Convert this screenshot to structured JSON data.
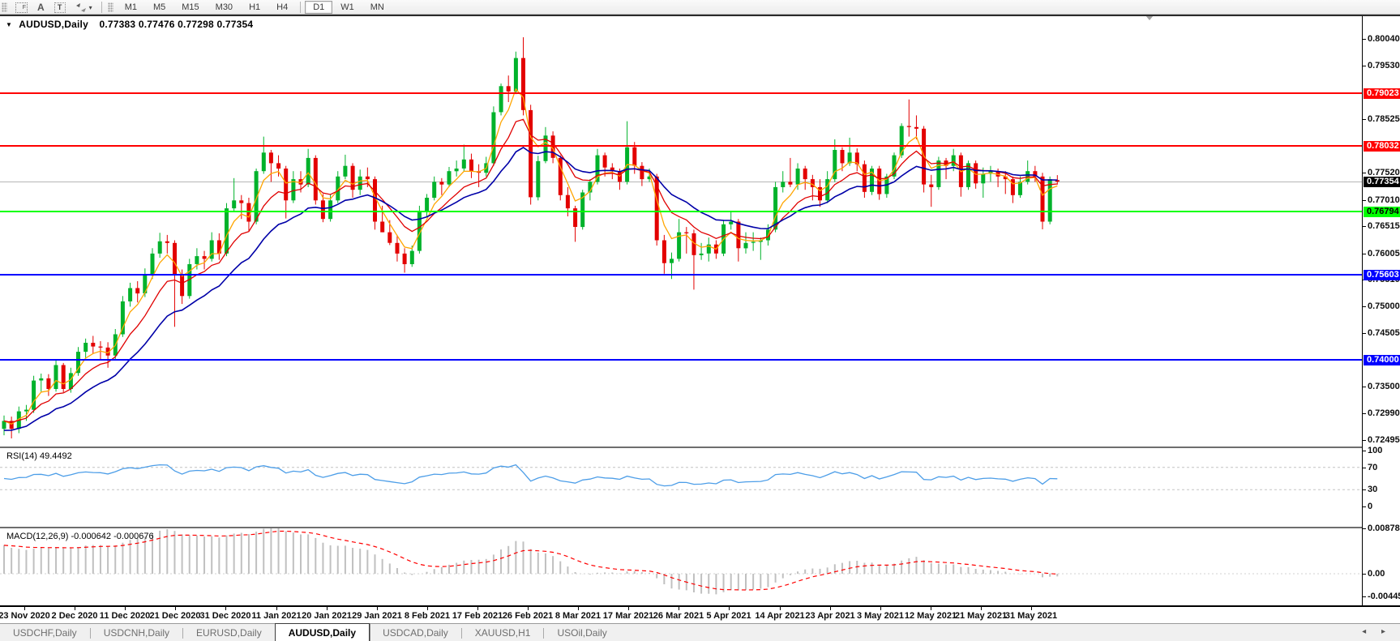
{
  "toolbar": {
    "text_tool_label": "A",
    "timeframes": [
      "M1",
      "M5",
      "M15",
      "M30",
      "H1",
      "H4",
      "D1",
      "W1",
      "MN"
    ],
    "active_timeframe": "D1"
  },
  "header": {
    "symbol_label": "AUDUSD,Daily",
    "ohlc_values": "0.77383 0.77476 0.77298 0.77354"
  },
  "rsi_panel": {
    "label": "RSI(14)",
    "value": "49.4492"
  },
  "macd_panel": {
    "label": "MACD(12,26,9)",
    "values": "-0.000642 -0.000676"
  },
  "tabs": {
    "items": [
      {
        "label": "USDCHF,Daily",
        "active": false
      },
      {
        "label": "USDCNH,Daily",
        "active": false
      },
      {
        "label": "EURUSD,Daily",
        "active": false
      },
      {
        "label": "AUDUSD,Daily",
        "active": true
      },
      {
        "label": "USDCAD,Daily",
        "active": false
      },
      {
        "label": "XAUUSD,H1",
        "active": false
      },
      {
        "label": "USOil,Daily",
        "active": false
      }
    ],
    "scroll_arrows": "◂ ▸"
  },
  "chart_data": {
    "type": "candlestick",
    "symbol": "AUDUSD",
    "period": "Daily",
    "current_bid": 0.77354,
    "colors": {
      "bull": "#00b22b",
      "bear": "#e30000",
      "ma_fast": "#ffa500",
      "ma_mid": "#e00000",
      "ma_slow": "#0000a8",
      "rsi_line": "#4d9ee8",
      "macd_hist": "#c0c0c0",
      "macd_signal": "#ff0000",
      "level_red": "#ff0000",
      "level_green": "#00ff00",
      "level_blue": "#0000ff",
      "bid_line": "#b6b6b6"
    },
    "y_axis_ticks": [
      "0.80040",
      "0.79530",
      "0.78525",
      "0.77520",
      "0.77010",
      "0.76515",
      "0.76005",
      "0.75510",
      "0.75000",
      "0.74505",
      "0.73500",
      "0.72990",
      "0.72495"
    ],
    "price_tags": [
      {
        "price": 0.79023,
        "label": "0.79023",
        "bg": "#ff0000",
        "fg": "#ffffff"
      },
      {
        "price": 0.78032,
        "label": "0.78032",
        "bg": "#ff0000",
        "fg": "#ffffff"
      },
      {
        "price": 0.77354,
        "label": "0.77354",
        "bg": "#000000",
        "fg": "#ffffff"
      },
      {
        "price": 0.76794,
        "label": "0.76794",
        "bg": "#00ff00",
        "fg": "#000000"
      },
      {
        "price": 0.75603,
        "label": "0.75603",
        "bg": "#0000ff",
        "fg": "#ffffff"
      },
      {
        "price": 0.74,
        "label": "0.74000",
        "bg": "#0000ff",
        "fg": "#ffffff"
      }
    ],
    "h_levels": [
      {
        "price": 0.79023,
        "color": "#ff0000",
        "width": 2
      },
      {
        "price": 0.78032,
        "color": "#ff0000",
        "width": 2
      },
      {
        "price": 0.76794,
        "color": "#00ff00",
        "width": 2
      },
      {
        "price": 0.75603,
        "color": "#0000ff",
        "width": 2
      },
      {
        "price": 0.74,
        "color": "#0000ff",
        "width": 2
      }
    ],
    "rsi_axis_ticks": [
      "100",
      "70",
      "30",
      "0"
    ],
    "rsi_dashed_levels": [
      70,
      30
    ],
    "macd_axis_ticks": [
      "0.008782",
      "0.00",
      "-0.004451"
    ],
    "x_axis_labels": [
      "23 Nov 2020",
      "2 Dec 2020",
      "11 Dec 2020",
      "21 Dec 2020",
      "31 Dec 2020",
      "11 Jan 2021",
      "20 Jan 2021",
      "29 Jan 2021",
      "8 Feb 2021",
      "17 Feb 2021",
      "26 Feb 2021",
      "8 Mar 2021",
      "17 Mar 2021",
      "26 Mar 2021",
      "5 Apr 2021",
      "14 Apr 2021",
      "23 Apr 2021",
      "3 May 2021",
      "12 May 2021",
      "21 May 2021",
      "31 May 2021"
    ],
    "candles": [
      [
        0.727,
        0.7295,
        0.7258,
        0.7285
      ],
      [
        0.7285,
        0.7293,
        0.7252,
        0.727
      ],
      [
        0.727,
        0.7312,
        0.7262,
        0.7303
      ],
      [
        0.7303,
        0.7315,
        0.7285,
        0.7306
      ],
      [
        0.7306,
        0.737,
        0.73,
        0.7361
      ],
      [
        0.7361,
        0.7374,
        0.734,
        0.7365
      ],
      [
        0.7365,
        0.7373,
        0.7332,
        0.7345
      ],
      [
        0.7345,
        0.7399,
        0.734,
        0.739
      ],
      [
        0.739,
        0.7394,
        0.7339,
        0.7345
      ],
      [
        0.7345,
        0.7385,
        0.7338,
        0.7375
      ],
      [
        0.7375,
        0.7424,
        0.737,
        0.7415
      ],
      [
        0.7415,
        0.744,
        0.7402,
        0.7432
      ],
      [
        0.7432,
        0.7445,
        0.7412,
        0.7425
      ],
      [
        0.7425,
        0.7435,
        0.7401,
        0.7423
      ],
      [
        0.7423,
        0.7433,
        0.7385,
        0.7408
      ],
      [
        0.7408,
        0.7458,
        0.74,
        0.7448
      ],
      [
        0.7448,
        0.752,
        0.7443,
        0.751
      ],
      [
        0.751,
        0.7545,
        0.75,
        0.7535
      ],
      [
        0.7535,
        0.7548,
        0.7508,
        0.7525
      ],
      [
        0.7525,
        0.7572,
        0.7518,
        0.756
      ],
      [
        0.756,
        0.761,
        0.7552,
        0.76
      ],
      [
        0.76,
        0.7639,
        0.7592,
        0.7623
      ],
      [
        0.7623,
        0.7635,
        0.76,
        0.762
      ],
      [
        0.762,
        0.7625,
        0.7462,
        0.756
      ],
      [
        0.756,
        0.757,
        0.7505,
        0.752
      ],
      [
        0.752,
        0.759,
        0.7515,
        0.758
      ],
      [
        0.758,
        0.761,
        0.757,
        0.7595
      ],
      [
        0.7595,
        0.7605,
        0.757,
        0.759
      ],
      [
        0.759,
        0.764,
        0.7585,
        0.7625
      ],
      [
        0.7625,
        0.7638,
        0.7588,
        0.76
      ],
      [
        0.76,
        0.7695,
        0.7595,
        0.7685
      ],
      [
        0.7685,
        0.7742,
        0.768,
        0.77
      ],
      [
        0.77,
        0.771,
        0.7665,
        0.7695
      ],
      [
        0.7695,
        0.7705,
        0.7642,
        0.766
      ],
      [
        0.766,
        0.776,
        0.7655,
        0.7755
      ],
      [
        0.7755,
        0.782,
        0.775,
        0.779
      ],
      [
        0.779,
        0.7795,
        0.7735,
        0.777
      ],
      [
        0.777,
        0.7785,
        0.7745,
        0.776
      ],
      [
        0.776,
        0.7765,
        0.7666,
        0.77
      ],
      [
        0.77,
        0.7755,
        0.7695,
        0.774
      ],
      [
        0.774,
        0.7755,
        0.7715,
        0.773
      ],
      [
        0.773,
        0.7797,
        0.7725,
        0.778
      ],
      [
        0.778,
        0.7785,
        0.7692,
        0.77
      ],
      [
        0.77,
        0.7712,
        0.7659,
        0.7665
      ],
      [
        0.7665,
        0.7712,
        0.766,
        0.77
      ],
      [
        0.77,
        0.7755,
        0.7695,
        0.7745
      ],
      [
        0.7745,
        0.7786,
        0.774,
        0.7765
      ],
      [
        0.7765,
        0.777,
        0.7705,
        0.772
      ],
      [
        0.772,
        0.7758,
        0.771,
        0.7745
      ],
      [
        0.7745,
        0.7762,
        0.7725,
        0.774
      ],
      [
        0.774,
        0.7745,
        0.7645,
        0.766
      ],
      [
        0.766,
        0.769,
        0.764,
        0.764
      ],
      [
        0.764,
        0.7663,
        0.7616,
        0.762
      ],
      [
        0.762,
        0.7635,
        0.7585,
        0.76
      ],
      [
        0.76,
        0.761,
        0.7564,
        0.758
      ],
      [
        0.758,
        0.7615,
        0.7575,
        0.7605
      ],
      [
        0.7605,
        0.769,
        0.76,
        0.768
      ],
      [
        0.768,
        0.7712,
        0.767,
        0.7705
      ],
      [
        0.7705,
        0.7745,
        0.77,
        0.7735
      ],
      [
        0.7735,
        0.7742,
        0.771,
        0.773
      ],
      [
        0.773,
        0.7763,
        0.7725,
        0.7755
      ],
      [
        0.7755,
        0.7775,
        0.7745,
        0.776
      ],
      [
        0.776,
        0.7805,
        0.7755,
        0.7777
      ],
      [
        0.7777,
        0.7788,
        0.7742,
        0.7755
      ],
      [
        0.7755,
        0.7768,
        0.7725,
        0.7752
      ],
      [
        0.7752,
        0.7782,
        0.7745,
        0.777
      ],
      [
        0.777,
        0.7877,
        0.7765,
        0.7866
      ],
      [
        0.7866,
        0.792,
        0.786,
        0.7915
      ],
      [
        0.7915,
        0.7935,
        0.7885,
        0.7905
      ],
      [
        0.7905,
        0.798,
        0.79,
        0.7968
      ],
      [
        0.7968,
        0.8007,
        0.786,
        0.787
      ],
      [
        0.787,
        0.788,
        0.7692,
        0.7706
      ],
      [
        0.7706,
        0.7784,
        0.77,
        0.7774
      ],
      [
        0.7774,
        0.7838,
        0.777,
        0.7822
      ],
      [
        0.7822,
        0.783,
        0.777,
        0.778
      ],
      [
        0.778,
        0.7785,
        0.77,
        0.771
      ],
      [
        0.771,
        0.7725,
        0.767,
        0.7685
      ],
      [
        0.7685,
        0.769,
        0.7622,
        0.765
      ],
      [
        0.765,
        0.772,
        0.7645,
        0.7715
      ],
      [
        0.7715,
        0.774,
        0.77,
        0.7735
      ],
      [
        0.7735,
        0.7797,
        0.773,
        0.7785
      ],
      [
        0.7785,
        0.779,
        0.7745,
        0.7762
      ],
      [
        0.7762,
        0.777,
        0.774,
        0.7755
      ],
      [
        0.7755,
        0.776,
        0.772,
        0.7735
      ],
      [
        0.7735,
        0.7849,
        0.773,
        0.78
      ],
      [
        0.78,
        0.781,
        0.775,
        0.7765
      ],
      [
        0.7765,
        0.7772,
        0.7727,
        0.774
      ],
      [
        0.774,
        0.776,
        0.7735,
        0.7745
      ],
      [
        0.7745,
        0.775,
        0.7615,
        0.7625
      ],
      [
        0.7625,
        0.7635,
        0.7562,
        0.7582
      ],
      [
        0.7582,
        0.7602,
        0.7552,
        0.759
      ],
      [
        0.759,
        0.7665,
        0.7585,
        0.764
      ],
      [
        0.764,
        0.765,
        0.76,
        0.7638
      ],
      [
        0.7638,
        0.7645,
        0.7532,
        0.7597
      ],
      [
        0.7597,
        0.762,
        0.7588,
        0.76
      ],
      [
        0.76,
        0.763,
        0.7585,
        0.7617
      ],
      [
        0.7617,
        0.7625,
        0.759,
        0.76
      ],
      [
        0.76,
        0.7663,
        0.7595,
        0.7655
      ],
      [
        0.7655,
        0.768,
        0.7645,
        0.766
      ],
      [
        0.766,
        0.7665,
        0.7585,
        0.761
      ],
      [
        0.761,
        0.764,
        0.76,
        0.762
      ],
      [
        0.762,
        0.764,
        0.7605,
        0.7622
      ],
      [
        0.7622,
        0.763,
        0.7588,
        0.7625
      ],
      [
        0.7625,
        0.7655,
        0.7615,
        0.7645
      ],
      [
        0.7645,
        0.7735,
        0.764,
        0.7725
      ],
      [
        0.7725,
        0.7755,
        0.7715,
        0.7735
      ],
      [
        0.7735,
        0.778,
        0.7725,
        0.773
      ],
      [
        0.773,
        0.777,
        0.772,
        0.776
      ],
      [
        0.776,
        0.7765,
        0.772,
        0.774
      ],
      [
        0.774,
        0.7748,
        0.77,
        0.7725
      ],
      [
        0.7725,
        0.774,
        0.7688,
        0.77
      ],
      [
        0.77,
        0.7755,
        0.7695,
        0.774
      ],
      [
        0.774,
        0.7815,
        0.7735,
        0.7795
      ],
      [
        0.7795,
        0.78,
        0.7755,
        0.777
      ],
      [
        0.777,
        0.7818,
        0.7765,
        0.779
      ],
      [
        0.779,
        0.7798,
        0.7755,
        0.7768
      ],
      [
        0.7768,
        0.7775,
        0.7705,
        0.7716
      ],
      [
        0.7716,
        0.7765,
        0.771,
        0.776
      ],
      [
        0.776,
        0.7765,
        0.7701,
        0.7712
      ],
      [
        0.7712,
        0.775,
        0.7705,
        0.7745
      ],
      [
        0.7745,
        0.779,
        0.774,
        0.7785
      ],
      [
        0.7785,
        0.7845,
        0.778,
        0.784
      ],
      [
        0.784,
        0.789,
        0.782,
        0.7838
      ],
      [
        0.7838,
        0.786,
        0.7815,
        0.7835
      ],
      [
        0.7835,
        0.784,
        0.7715,
        0.773
      ],
      [
        0.773,
        0.7748,
        0.7688,
        0.7725
      ],
      [
        0.7725,
        0.7782,
        0.772,
        0.7775
      ],
      [
        0.7775,
        0.778,
        0.774,
        0.7765
      ],
      [
        0.7765,
        0.7797,
        0.7755,
        0.7785
      ],
      [
        0.7785,
        0.779,
        0.7707,
        0.7725
      ],
      [
        0.7725,
        0.7775,
        0.772,
        0.777
      ],
      [
        0.777,
        0.7775,
        0.7722,
        0.7732
      ],
      [
        0.7732,
        0.7762,
        0.7705,
        0.775
      ],
      [
        0.775,
        0.7765,
        0.7735,
        0.7755
      ],
      [
        0.7755,
        0.776,
        0.7725,
        0.7745
      ],
      [
        0.7745,
        0.7755,
        0.7712,
        0.774
      ],
      [
        0.774,
        0.7745,
        0.7695,
        0.771
      ],
      [
        0.771,
        0.7745,
        0.7705,
        0.7735
      ],
      [
        0.7735,
        0.7775,
        0.773,
        0.7755
      ],
      [
        0.7755,
        0.7765,
        0.7735,
        0.7745
      ],
      [
        0.7745,
        0.7752,
        0.76455,
        0.766
      ],
      [
        0.766,
        0.7745,
        0.7655,
        0.774
      ],
      [
        0.77383,
        0.77476,
        0.77298,
        0.77354
      ]
    ]
  }
}
